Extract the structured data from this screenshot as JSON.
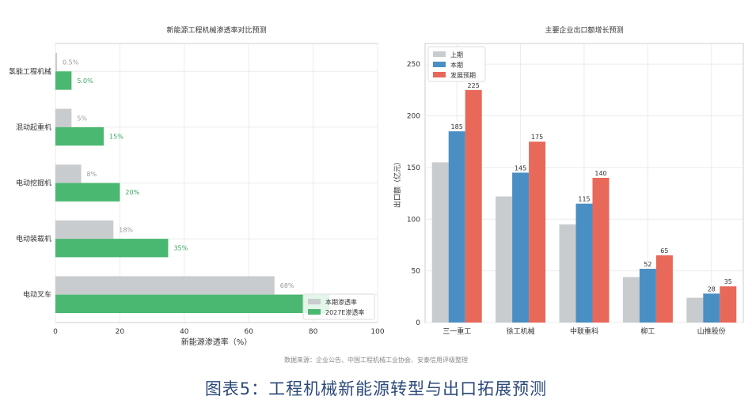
{
  "chart_data": [
    {
      "type": "bar",
      "orientation": "horizontal",
      "title": "新能源工程机械渗透率对比预测",
      "xlabel": "新能源渗透率（%）",
      "ylabel": "",
      "xlim": [
        0,
        100
      ],
      "xticks": [
        0,
        20,
        40,
        60,
        80,
        100
      ],
      "categories": [
        "氢能工程机械",
        "混动起重机",
        "电动挖掘机",
        "电动装载机",
        "电动叉车"
      ],
      "series": [
        {
          "name": "本期渗透率",
          "values": [
            0.5,
            5,
            8,
            18,
            68
          ],
          "labels": [
            "0.5%",
            "5%",
            "8%",
            "18%",
            "68%"
          ],
          "color": "#c8ccce"
        },
        {
          "name": "2027E渗透率",
          "values": [
            5,
            15,
            20,
            35,
            85
          ],
          "labels": [
            "5.0%",
            "15%",
            "20%",
            "35%",
            ""
          ],
          "color": "#4ab870"
        }
      ],
      "grid": true,
      "legend": "bottom-right"
    },
    {
      "type": "bar",
      "title": "主要企业出口额增长预测",
      "xlabel": "",
      "ylabel": "出口额（亿元）",
      "ylim": [
        0,
        270
      ],
      "yticks": [
        0,
        50,
        100,
        150,
        200,
        250
      ],
      "categories": [
        "三一重工",
        "徐工机械",
        "中联重科",
        "柳工",
        "山推股份"
      ],
      "series": [
        {
          "name": "上期",
          "values": [
            155,
            122,
            95,
            44,
            24
          ],
          "labels": [
            "",
            "",
            "",
            "",
            ""
          ],
          "color": "#c8ccce"
        },
        {
          "name": "本期",
          "values": [
            185,
            145,
            115,
            52,
            28
          ],
          "labels": [
            "185",
            "145",
            "115",
            "52",
            "28"
          ],
          "color": "#4a8fc4"
        },
        {
          "name": "发展预期",
          "values": [
            225,
            175,
            140,
            65,
            35
          ],
          "labels": [
            "225",
            "175",
            "140",
            "65",
            "35"
          ],
          "color": "#e8685a"
        }
      ],
      "grid": true,
      "legend": "top-left"
    }
  ],
  "source": "数据来源：企业公告、中国工程机械工业协会、安泰信用评级整理",
  "caption": "图表5：工程机械新能源转型与出口拓展预测"
}
